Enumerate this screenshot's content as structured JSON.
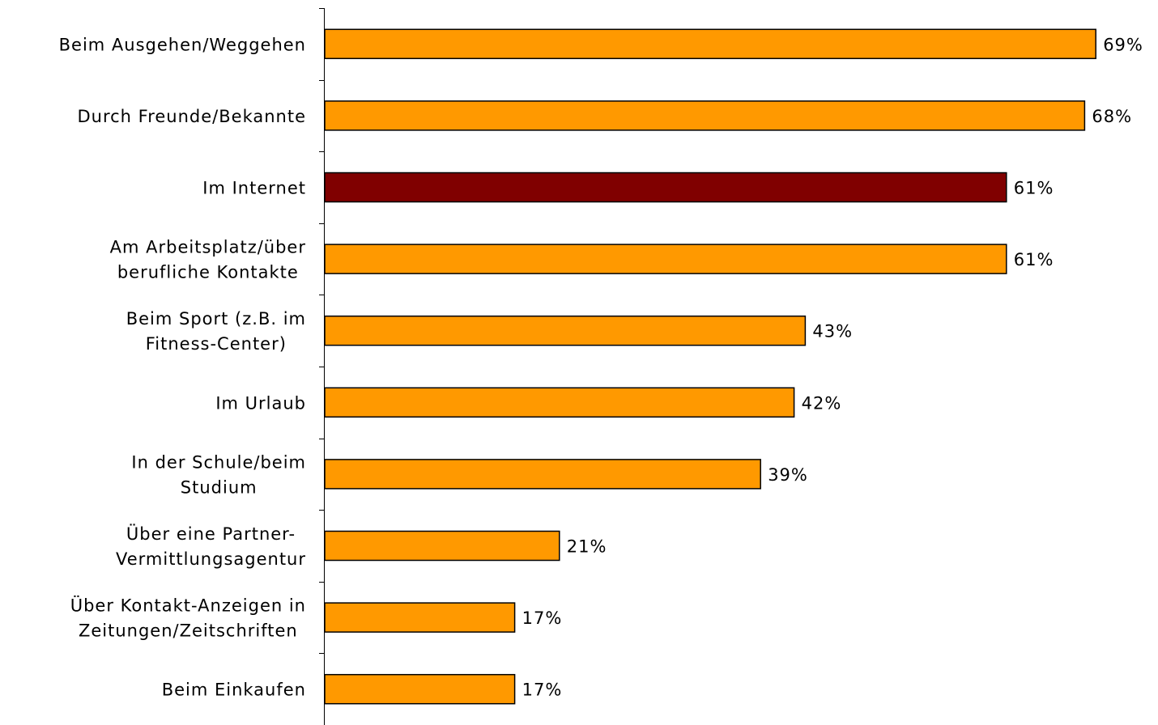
{
  "chart_data": {
    "type": "bar",
    "orientation": "horizontal",
    "categories": [
      "Beim Ausgehen/Weggehen",
      "Durch Freunde/Bekannte",
      "Im Internet",
      "Am Arbeitsplatz/über\nberufliche Kontakte",
      "Beim Sport (z.B. im\nFitness-Center)",
      "Im Urlaub",
      "In der Schule/beim\nStudium",
      "Über eine Partner-\nVermittlungsagentur",
      "Über Kontakt-Anzeigen in\nZeitungen/Zeitschriften",
      "Beim Einkaufen"
    ],
    "values": [
      69,
      68,
      61,
      61,
      43,
      42,
      39,
      21,
      17,
      17
    ],
    "value_labels": [
      "69%",
      "68%",
      "61%",
      "61%",
      "43%",
      "42%",
      "39%",
      "21%",
      "17%",
      "17%"
    ],
    "colors": [
      "#ff9900",
      "#ff9900",
      "#800000",
      "#ff9900",
      "#ff9900",
      "#ff9900",
      "#ff9900",
      "#ff9900",
      "#ff9900",
      "#ff9900"
    ]
  }
}
